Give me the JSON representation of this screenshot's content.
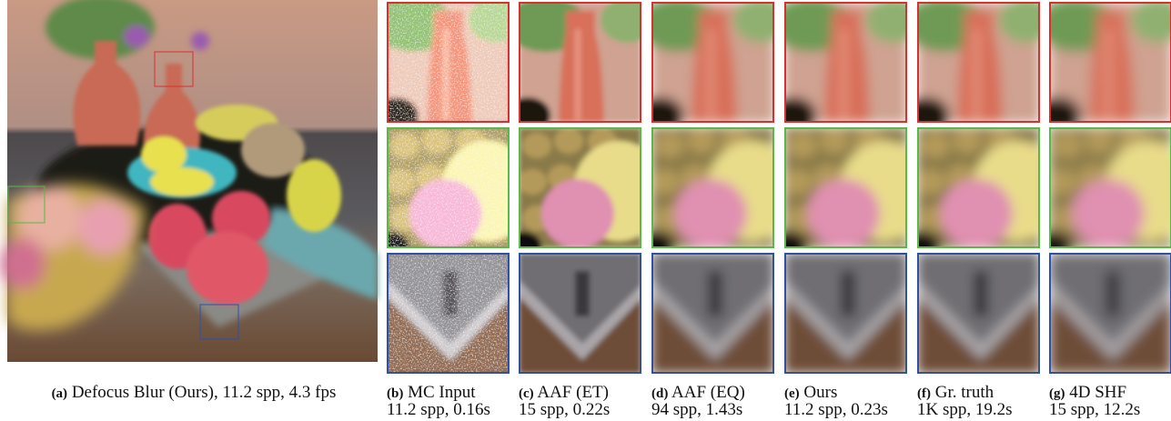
{
  "figure": {
    "main": {
      "label": "(a)",
      "text": "Defocus Blur (Ours), 11.2 spp, 4.3 fps"
    },
    "columns": [
      {
        "label": "(b)",
        "name": "MC Input",
        "stats": "11.2 spp, 0.16s"
      },
      {
        "label": "(c)",
        "name": "AAF (ET)",
        "stats": "15 spp, 0.22s"
      },
      {
        "label": "(d)",
        "name": "AAF (EQ)",
        "stats": "94 spp, 1.43s"
      },
      {
        "label": "(e)",
        "name": "Ours",
        "stats": "11.2 spp, 0.23s"
      },
      {
        "label": "(f)",
        "name": "Gr. truth",
        "stats": "1K spp, 19.2s"
      },
      {
        "label": "(g)",
        "name": "4D SHF",
        "stats": "15 spp, 12.2s"
      }
    ]
  }
}
